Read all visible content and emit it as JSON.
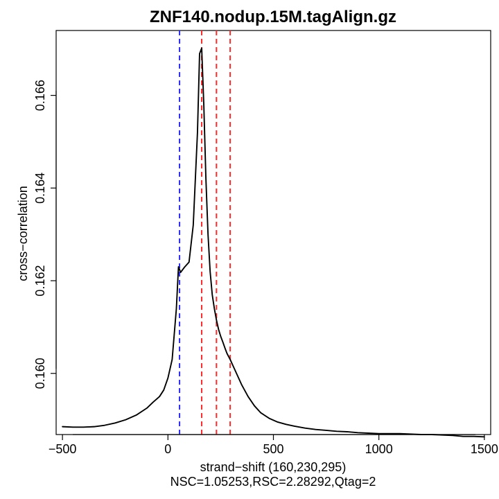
{
  "chart_data": {
    "type": "line",
    "title": "ZNF140.nodup.15M.tagAlign.gz",
    "xlabel": "strand−shift (160,230,295)",
    "subtitle": "NSC=1.05253,RSC=2.28292,Qtag=2",
    "ylabel": "cross−correlation",
    "xlim": [
      -530,
      1530
    ],
    "ylim": [
      0.15868,
      0.1674
    ],
    "xticks": [
      "−500",
      "0",
      "500",
      "1000",
      "1500"
    ],
    "xtick_values": [
      -500,
      0,
      500,
      1000,
      1500
    ],
    "yticks": [
      "0.160",
      "0.162",
      "0.164",
      "0.166"
    ],
    "ytick_values": [
      0.16,
      0.162,
      0.164,
      0.166
    ],
    "grid": false,
    "legend": "none",
    "series": [
      {
        "x": [
          -500,
          -450,
          -400,
          -350,
          -300,
          -250,
          -200,
          -150,
          -100,
          -70,
          -40,
          -20,
          0,
          20,
          40,
          50,
          60,
          80,
          100,
          120,
          140,
          150,
          160,
          170,
          180,
          190,
          200,
          210,
          220,
          230,
          240,
          250,
          260,
          270,
          280,
          295,
          310,
          330,
          350,
          380,
          410,
          440,
          480,
          520,
          560,
          600,
          650,
          700,
          750,
          800,
          850,
          900,
          950,
          1000,
          1050,
          1100,
          1150,
          1200,
          1250,
          1300,
          1350,
          1400,
          1450,
          1500
        ],
        "y": [
          0.15885,
          0.15884,
          0.15884,
          0.15885,
          0.15888,
          0.15893,
          0.159,
          0.1591,
          0.15925,
          0.15938,
          0.1595,
          0.15964,
          0.1599,
          0.1603,
          0.1614,
          0.1623,
          0.16218,
          0.1623,
          0.1624,
          0.1632,
          0.1652,
          0.1669,
          0.16702,
          0.1658,
          0.1642,
          0.163,
          0.1622,
          0.1617,
          0.1614,
          0.16115,
          0.16095,
          0.1608,
          0.16068,
          0.16055,
          0.16043,
          0.1603,
          0.16015,
          0.15995,
          0.15975,
          0.1595,
          0.1593,
          0.15915,
          0.15903,
          0.15895,
          0.1589,
          0.15886,
          0.15882,
          0.15879,
          0.15877,
          0.15875,
          0.15874,
          0.15872,
          0.15871,
          0.1587,
          0.1587,
          0.1587,
          0.15869,
          0.15868,
          0.15868,
          0.15867,
          0.15866,
          0.15864,
          0.15864,
          0.15863
        ]
      }
    ],
    "vlines": [
      {
        "x": 55,
        "color": "#2b2bff"
      },
      {
        "x": 160,
        "color": "#ff2b2b"
      },
      {
        "x": 230,
        "color": "#ff2b2b"
      },
      {
        "x": 295,
        "color": "#ff2b2b"
      }
    ]
  }
}
